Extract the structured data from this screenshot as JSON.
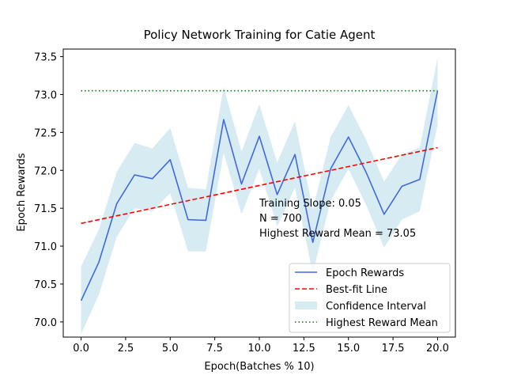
{
  "chart_data": {
    "type": "line",
    "title": "Policy Network Training for Catie Agent",
    "xlabel": "Epoch(Batches % 10)",
    "ylabel": "Epoch Rewards",
    "xlim": [
      -1.0,
      21.0
    ],
    "ylim": [
      69.8,
      73.6
    ],
    "x_ticks": [
      0.0,
      2.5,
      5.0,
      7.5,
      10.0,
      12.5,
      15.0,
      17.5,
      20.0
    ],
    "x_tick_labels": [
      "0.0",
      "2.5",
      "5.0",
      "7.5",
      "10.0",
      "12.5",
      "15.0",
      "17.5",
      "20.0"
    ],
    "y_ticks": [
      70.0,
      70.5,
      71.0,
      71.5,
      72.0,
      72.5,
      73.0,
      73.5
    ],
    "y_tick_labels": [
      "70.0",
      "70.5",
      "71.0",
      "71.5",
      "72.0",
      "72.5",
      "73.0",
      "73.5"
    ],
    "grid": false,
    "legend_position": "lower-right",
    "x": [
      0,
      1,
      2,
      3,
      4,
      5,
      6,
      7,
      8,
      9,
      10,
      11,
      12,
      13,
      14,
      15,
      16,
      17,
      18,
      19,
      20
    ],
    "series": [
      {
        "name": "Epoch Rewards",
        "kind": "line",
        "color": "#4169e1",
        "values": [
          70.28,
          70.79,
          71.56,
          71.94,
          71.89,
          72.14,
          71.35,
          71.34,
          72.67,
          71.82,
          72.45,
          71.68,
          72.21,
          71.05,
          72.02,
          72.44,
          71.97,
          71.42,
          71.79,
          71.88,
          73.05
        ]
      },
      {
        "name": "Best-fit Line",
        "kind": "dashed",
        "color": "#ff0000",
        "x": [
          0,
          20
        ],
        "values": [
          71.3,
          72.3
        ]
      },
      {
        "name": "Confidence Interval",
        "kind": "band",
        "color": "#add8e6",
        "upper": [
          70.73,
          71.22,
          71.98,
          72.36,
          72.29,
          72.56,
          71.77,
          71.75,
          73.1,
          72.25,
          72.87,
          72.1,
          72.65,
          71.48,
          72.44,
          72.86,
          72.4,
          71.85,
          72.21,
          72.3,
          73.48
        ],
        "lower": [
          69.84,
          70.36,
          71.12,
          71.5,
          71.46,
          71.7,
          70.93,
          70.93,
          72.23,
          71.42,
          72.02,
          71.26,
          71.77,
          70.64,
          71.6,
          72.02,
          71.54,
          70.98,
          71.35,
          71.46,
          72.6
        ]
      },
      {
        "name": "Highest Reward Mean",
        "kind": "dotted",
        "color": "#008000",
        "x": [
          0,
          20
        ],
        "values": [
          73.05,
          73.05
        ]
      }
    ],
    "annotations": [
      "Training Slope: 0.05",
      "N = 700",
      "Highest Reward Mean = 73.05"
    ]
  }
}
